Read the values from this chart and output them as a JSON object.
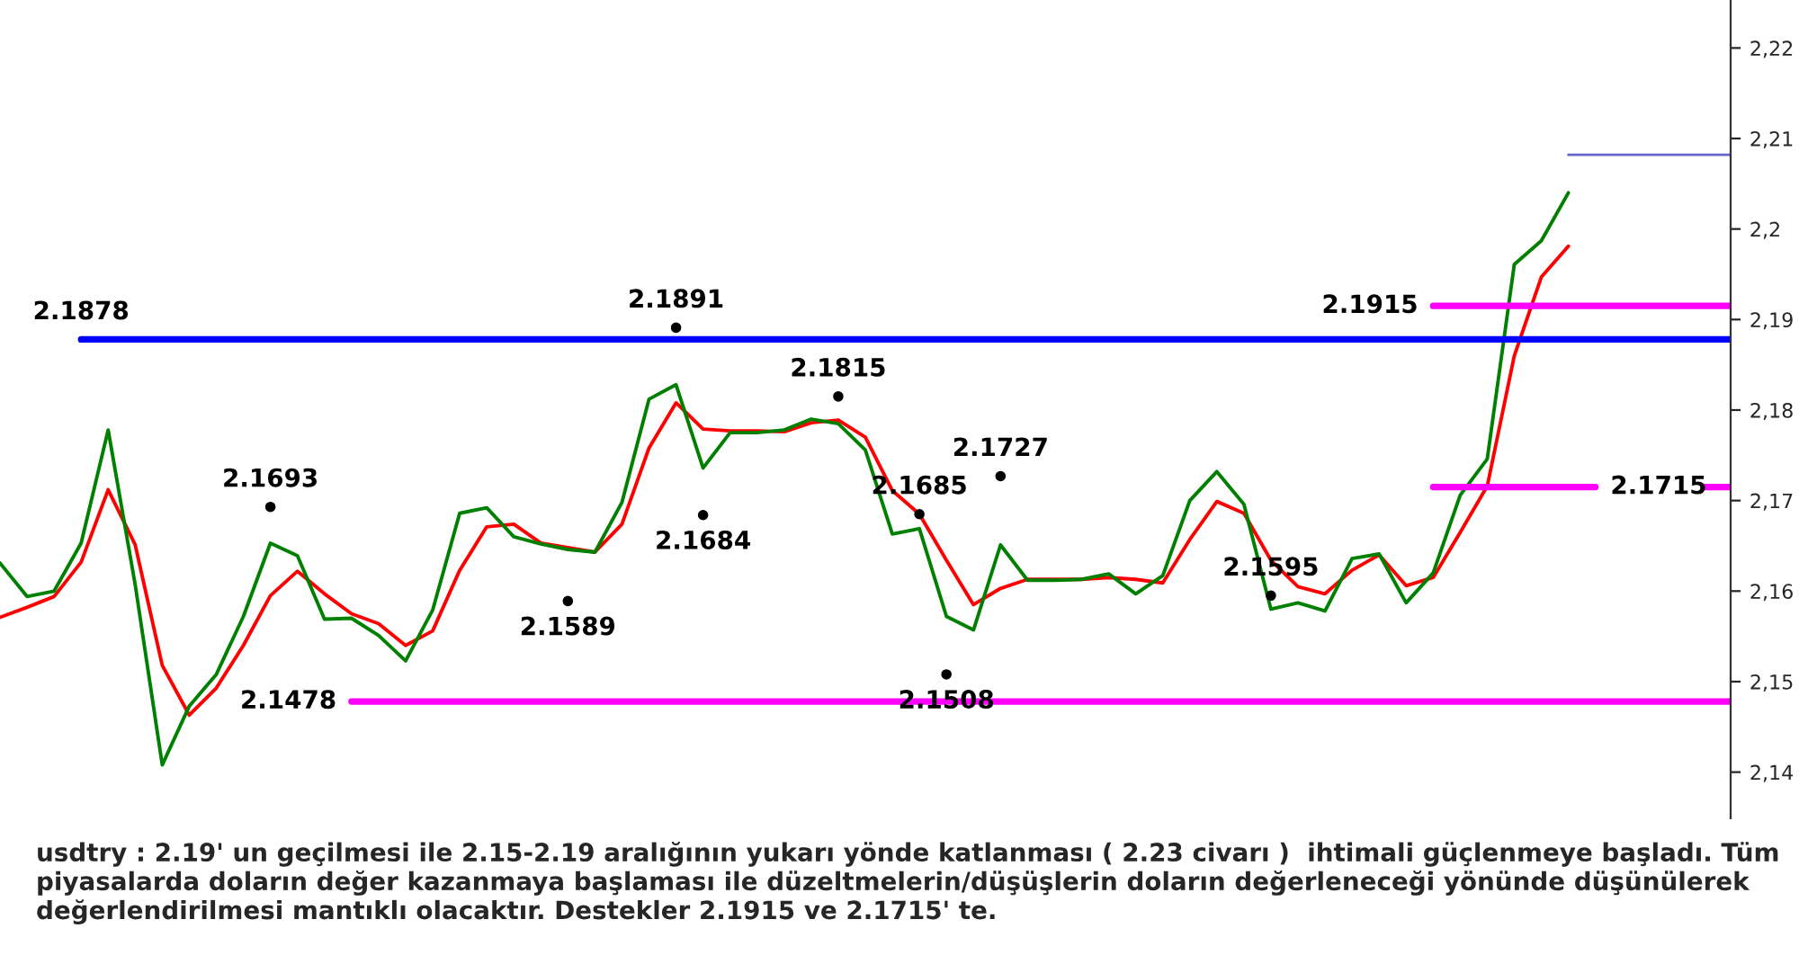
{
  "chart_data": {
    "type": "line",
    "categories": [
      null,
      null,
      null,
      null,
      null,
      null,
      null,
      null,
      null,
      null,
      null,
      null,
      null,
      null,
      null,
      null,
      null,
      null,
      null,
      null,
      null,
      null,
      null,
      null,
      null,
      null,
      null,
      null,
      null,
      null,
      null,
      null,
      null,
      null,
      null,
      null,
      null,
      null,
      null,
      null,
      null,
      null,
      null,
      null,
      null,
      null,
      null,
      null,
      null,
      null,
      null,
      null,
      null,
      null,
      null,
      null,
      null,
      null,
      null,
      null,
      null,
      null,
      null,
      null,
      null
    ],
    "ylim": [
      2.1349,
      2.2253
    ],
    "yticks": [
      {
        "value": 2.14,
        "label": "2,14"
      },
      {
        "value": 2.15,
        "label": "2,15"
      },
      {
        "value": 2.16,
        "label": "2,16"
      },
      {
        "value": 2.17,
        "label": "2,17"
      },
      {
        "value": 2.18,
        "label": "2,18"
      },
      {
        "value": 2.19,
        "label": "2,19"
      },
      {
        "value": 2.2,
        "label": "2,2"
      },
      {
        "value": 2.21,
        "label": "2,21"
      },
      {
        "value": 2.22,
        "label": "2,22"
      }
    ],
    "tick_labels": "y",
    "grid": false,
    "series": [
      {
        "color": "#ff0000",
        "values": [
          2.1571,
          2.1582,
          2.1594,
          2.1632,
          2.1712,
          2.1651,
          2.1518,
          2.1463,
          2.1493,
          2.154,
          2.1595,
          2.1622,
          2.1597,
          2.1575,
          2.1564,
          2.154,
          2.1556,
          2.1623,
          2.1671,
          2.1674,
          2.1653,
          2.1648,
          2.1643,
          2.1674,
          2.1758,
          2.1808,
          2.1779,
          2.1777,
          2.1777,
          2.1776,
          2.1786,
          2.1789,
          2.177,
          2.1711,
          2.1685,
          2.1634,
          2.1585,
          2.1603,
          2.1613,
          2.1613,
          2.1613,
          2.1615,
          2.1613,
          2.1609,
          2.1657,
          2.1699,
          2.1686,
          2.1634,
          2.1605,
          2.1597,
          2.1623,
          2.164,
          2.1606,
          2.1615,
          2.1665,
          2.1716,
          2.186,
          2.1947,
          2.1981,
          null,
          null,
          null,
          null,
          null,
          null
        ]
      },
      {
        "color": "#008000",
        "values": [
          2.1631,
          2.1594,
          2.16,
          2.1653,
          2.1778,
          2.1607,
          2.1408,
          2.1473,
          2.1508,
          2.1572,
          2.1653,
          2.1639,
          2.1569,
          2.157,
          2.1551,
          2.1523,
          2.1579,
          2.1686,
          2.1692,
          2.166,
          2.1652,
          2.1646,
          2.1643,
          2.1698,
          2.1812,
          2.1828,
          2.1736,
          2.1775,
          2.1775,
          2.1778,
          2.179,
          2.1785,
          2.1756,
          2.1663,
          2.1669,
          2.1572,
          2.1557,
          2.1651,
          2.1612,
          2.1612,
          2.1613,
          2.1619,
          2.1597,
          2.1617,
          2.17,
          2.1732,
          2.1696,
          2.158,
          2.1587,
          2.1578,
          2.1636,
          2.1641,
          2.1587,
          2.162,
          2.1706,
          2.1746,
          2.1961,
          2.1987,
          2.204,
          null,
          null,
          null,
          null,
          null,
          null
        ]
      },
      {
        "type": "scatter",
        "marker": "circle",
        "color": "#000000",
        "values": [
          null,
          null,
          null,
          null,
          null,
          null,
          null,
          null,
          null,
          null,
          2.1693,
          null,
          null,
          null,
          null,
          null,
          null,
          null,
          null,
          null,
          null,
          2.1589,
          null,
          null,
          null,
          2.1891,
          2.1684,
          null,
          null,
          null,
          null,
          2.1815,
          null,
          null,
          2.1685,
          2.1508,
          null,
          2.1727,
          null,
          null,
          null,
          null,
          null,
          null,
          null,
          null,
          null,
          2.1595,
          null,
          null,
          null,
          null,
          null,
          null,
          null,
          null,
          null,
          null,
          null,
          null,
          null,
          null,
          null,
          null,
          null
        ],
        "value_labels": [
          null,
          null,
          null,
          null,
          null,
          null,
          null,
          null,
          null,
          null,
          "2.1693",
          null,
          null,
          null,
          null,
          null,
          null,
          null,
          null,
          null,
          null,
          "2.1589",
          null,
          null,
          null,
          "2.1891",
          "2.1684",
          null,
          null,
          null,
          null,
          "2.1815",
          null,
          null,
          "2.1685",
          "2.1508",
          null,
          "2.1727",
          null,
          null,
          null,
          null,
          null,
          null,
          null,
          null,
          null,
          "2.1595",
          null,
          null,
          null,
          null,
          null,
          null,
          null,
          null,
          null,
          null,
          null,
          null,
          null,
          null,
          null,
          null,
          null
        ]
      },
      {
        "color": "#0000ff",
        "values": [
          null,
          null,
          null,
          2.1878,
          2.1878,
          2.1878,
          2.1878,
          2.1878,
          2.1878,
          2.1878,
          2.1878,
          2.1878,
          2.1878,
          2.1878,
          2.1878,
          2.1878,
          2.1878,
          2.1878,
          2.1878,
          2.1878,
          2.1878,
          2.1878,
          2.1878,
          2.1878,
          2.1878,
          2.1878,
          2.1878,
          2.1878,
          2.1878,
          2.1878,
          2.1878,
          2.1878,
          2.1878,
          2.1878,
          2.1878,
          2.1878,
          2.1878,
          2.1878,
          2.1878,
          2.1878,
          2.1878,
          2.1878,
          2.1878,
          2.1878,
          2.1878,
          2.1878,
          2.1878,
          2.1878,
          2.1878,
          2.1878,
          2.1878,
          2.1878,
          2.1878,
          2.1878,
          2.1878,
          2.1878,
          2.1878,
          2.1878,
          2.1878,
          2.1878,
          2.1878,
          2.1878,
          2.1878,
          2.1878,
          2.1878
        ],
        "value_labels": [
          null,
          null,
          null,
          "2.1878",
          null,
          null,
          null,
          null,
          null,
          null,
          null,
          null,
          null,
          null,
          null,
          null,
          null,
          null,
          null,
          null,
          null,
          null,
          null,
          null,
          null,
          null,
          null,
          null,
          null,
          null,
          null,
          null,
          null,
          null,
          null,
          null,
          null,
          null,
          null,
          null,
          null,
          null,
          null,
          null,
          null,
          null,
          null,
          null,
          null,
          null,
          null,
          null,
          null,
          null,
          null,
          null,
          null,
          null,
          null,
          null,
          null,
          null,
          null,
          null,
          null
        ]
      },
      {
        "color": "#ff00ff",
        "values": [
          null,
          null,
          null,
          null,
          null,
          null,
          null,
          null,
          null,
          null,
          null,
          null,
          null,
          2.1478,
          2.1478,
          2.1478,
          2.1478,
          2.1478,
          2.1478,
          2.1478,
          2.1478,
          2.1478,
          2.1478,
          2.1478,
          2.1478,
          2.1478,
          2.1478,
          2.1478,
          2.1478,
          2.1478,
          2.1478,
          2.1478,
          2.1478,
          2.1478,
          2.1478,
          2.1478,
          2.1478,
          2.1478,
          2.1478,
          2.1478,
          2.1478,
          2.1478,
          2.1478,
          2.1478,
          2.1478,
          2.1478,
          2.1478,
          2.1478,
          2.1478,
          2.1478,
          2.1478,
          2.1478,
          2.1478,
          2.1478,
          2.1478,
          2.1478,
          2.1478,
          2.1478,
          2.1478,
          2.1478,
          2.1478,
          2.1478,
          2.1478,
          2.1478,
          2.1478
        ],
        "value_labels": [
          null,
          null,
          null,
          null,
          null,
          null,
          null,
          null,
          null,
          null,
          null,
          null,
          null,
          "2.1478",
          null,
          null,
          null,
          null,
          null,
          null,
          null,
          null,
          null,
          null,
          null,
          null,
          null,
          null,
          null,
          null,
          null,
          null,
          null,
          null,
          null,
          null,
          null,
          null,
          null,
          null,
          null,
          null,
          null,
          null,
          null,
          null,
          null,
          null,
          null,
          null,
          null,
          null,
          null,
          null,
          null,
          null,
          null,
          null,
          null,
          null,
          null,
          null,
          null,
          null,
          null
        ]
      },
      {
        "color": "#ff00ff",
        "values": [
          null,
          null,
          null,
          null,
          null,
          null,
          null,
          null,
          null,
          null,
          null,
          null,
          null,
          null,
          null,
          null,
          null,
          null,
          null,
          null,
          null,
          null,
          null,
          null,
          null,
          null,
          null,
          null,
          null,
          null,
          null,
          null,
          null,
          null,
          null,
          null,
          null,
          null,
          null,
          null,
          null,
          null,
          null,
          null,
          null,
          null,
          null,
          null,
          null,
          null,
          null,
          null,
          null,
          2.1915,
          2.1915,
          2.1915,
          2.1915,
          2.1915,
          2.1915,
          2.1915,
          2.1915,
          2.1915,
          2.1915,
          2.1915,
          2.1915
        ],
        "value_labels": [
          null,
          null,
          null,
          null,
          null,
          null,
          null,
          null,
          null,
          null,
          null,
          null,
          null,
          null,
          null,
          null,
          null,
          null,
          null,
          null,
          null,
          null,
          null,
          null,
          null,
          null,
          null,
          null,
          null,
          null,
          null,
          null,
          null,
          null,
          null,
          null,
          null,
          null,
          null,
          null,
          null,
          null,
          null,
          null,
          null,
          null,
          null,
          null,
          null,
          null,
          null,
          null,
          null,
          "2.1915",
          null,
          null,
          null,
          null,
          null,
          null,
          null,
          null,
          null,
          null,
          null
        ]
      },
      {
        "color": "#ff00ff",
        "values": [
          null,
          null,
          null,
          null,
          null,
          null,
          null,
          null,
          null,
          null,
          null,
          null,
          null,
          null,
          null,
          null,
          null,
          null,
          null,
          null,
          null,
          null,
          null,
          null,
          null,
          null,
          null,
          null,
          null,
          null,
          null,
          null,
          null,
          null,
          null,
          null,
          null,
          null,
          null,
          null,
          null,
          null,
          null,
          null,
          null,
          null,
          null,
          null,
          null,
          null,
          null,
          null,
          null,
          2.1715,
          2.1715,
          2.1715,
          2.1715,
          2.1715,
          2.1715,
          2.1715,
          null,
          null,
          null,
          2.1715,
          2.1715
        ],
        "value_labels": [
          null,
          null,
          null,
          null,
          null,
          null,
          null,
          null,
          null,
          null,
          null,
          null,
          null,
          null,
          null,
          null,
          null,
          null,
          null,
          null,
          null,
          null,
          null,
          null,
          null,
          null,
          null,
          null,
          null,
          null,
          null,
          null,
          null,
          null,
          null,
          null,
          null,
          null,
          null,
          null,
          null,
          null,
          null,
          null,
          null,
          null,
          null,
          null,
          null,
          null,
          null,
          null,
          null,
          null,
          null,
          null,
          null,
          null,
          null,
          "2.1715",
          null,
          null,
          null,
          null,
          null
        ]
      },
      {
        "color": "#6666cc",
        "values": [
          null,
          null,
          null,
          null,
          null,
          null,
          null,
          null,
          null,
          null,
          null,
          null,
          null,
          null,
          null,
          null,
          null,
          null,
          null,
          null,
          null,
          null,
          null,
          null,
          null,
          null,
          null,
          null,
          null,
          null,
          null,
          null,
          null,
          null,
          null,
          null,
          null,
          null,
          null,
          null,
          null,
          null,
          null,
          null,
          null,
          null,
          null,
          null,
          null,
          null,
          null,
          null,
          null,
          null,
          null,
          null,
          null,
          null,
          2.2082,
          2.2082,
          2.2082,
          2.2082,
          2.2082,
          2.2082,
          2.2082
        ]
      }
    ],
    "annotations": [
      "usdtry : 2.19' un geçilmesi ile 2.15-2.19 aralığının yukarı yönde katlanması ( 2.23 civarı )  ihtimali güçlenmeye başladı. Tüm piyasalarda doların değer kazanmaya başlaması ile düzeltmelerin/düşüşlerin doların değerleneceği yönünde düşünülerek değerlendirilmesi mantıklı olacaktır. Destekler 2.1915 ve 2.1715' te."
    ]
  }
}
